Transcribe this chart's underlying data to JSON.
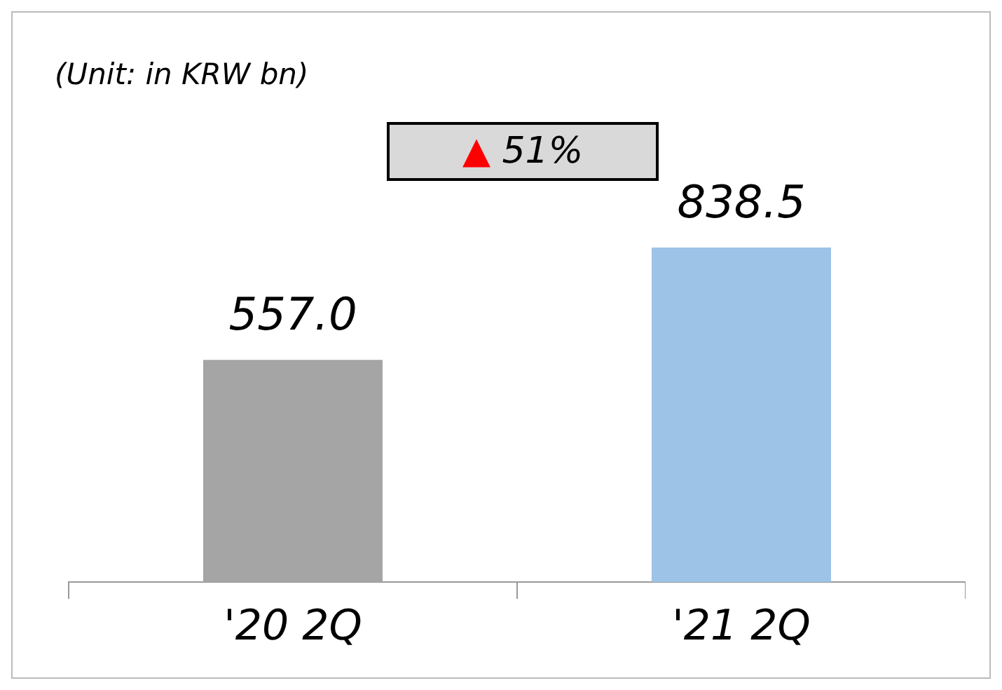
{
  "chart_data": {
    "type": "bar",
    "categories": [
      "'20 2Q",
      "'21 2Q"
    ],
    "values": [
      557.0,
      838.5
    ],
    "colors": [
      "#a5a5a5",
      "#9dc3e6"
    ],
    "value_labels": [
      "557.0",
      "838.5"
    ],
    "annotations": [
      "(Unit: in KRW bn)",
      "▲ 51%"
    ]
  }
}
